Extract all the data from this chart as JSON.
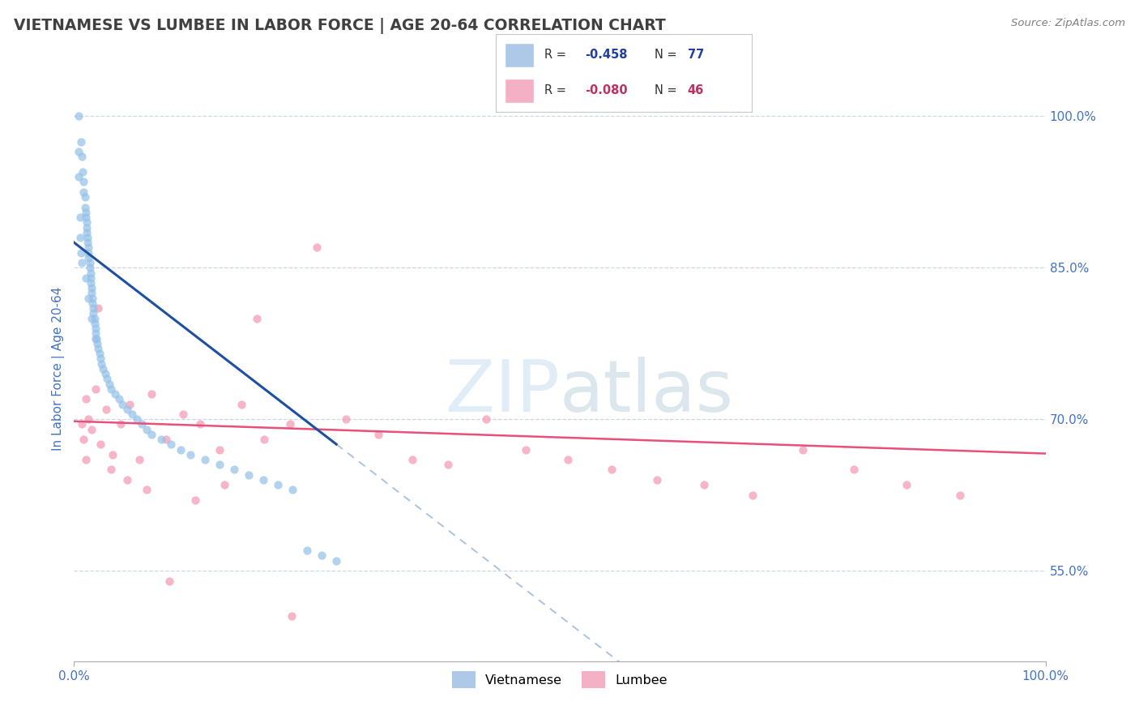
{
  "title": "VIETNAMESE VS LUMBEE IN LABOR FORCE | AGE 20-64 CORRELATION CHART",
  "source": "Source: ZipAtlas.com",
  "ylabel": "In Labor Force | Age 20-64",
  "xlim": [
    0.0,
    1.0
  ],
  "ylim": [
    0.46,
    1.04
  ],
  "ytick_labels_right": [
    "100.0%",
    "85.0%",
    "70.0%",
    "55.0%"
  ],
  "ytick_values_right": [
    1.0,
    0.85,
    0.7,
    0.55
  ],
  "watermark_zip": "ZIP",
  "watermark_atlas": "atlas",
  "vietnamese_color": "#92c0e8",
  "lumbee_color": "#f498b0",
  "vietnamese_alpha": 0.7,
  "lumbee_alpha": 0.7,
  "scatter_size": 55,
  "trend_viet_color": "#1e4fa0",
  "trend_lumbee_color": "#e8507a",
  "dashed_line_color": "#aac4e0",
  "grid_color": "#c8d8e8",
  "background_color": "#ffffff",
  "title_color": "#404040",
  "title_fontsize": 13.5,
  "right_tick_color": "#4472c4",
  "viet_trend_x0": 0.0,
  "viet_trend_y0": 0.875,
  "viet_trend_x1": 0.27,
  "viet_trend_y1": 0.675,
  "viet_trend_slope": -0.74,
  "viet_trend_intercept": 0.875,
  "lumb_trend_slope": -0.032,
  "lumb_trend_intercept": 0.698,
  "vietnamese_x": [
    0.005,
    0.007,
    0.008,
    0.009,
    0.01,
    0.01,
    0.011,
    0.011,
    0.012,
    0.012,
    0.013,
    0.013,
    0.013,
    0.014,
    0.014,
    0.015,
    0.015,
    0.015,
    0.016,
    0.016,
    0.017,
    0.017,
    0.017,
    0.018,
    0.018,
    0.019,
    0.019,
    0.02,
    0.02,
    0.021,
    0.021,
    0.022,
    0.022,
    0.023,
    0.024,
    0.025,
    0.026,
    0.027,
    0.028,
    0.03,
    0.032,
    0.034,
    0.036,
    0.038,
    0.042,
    0.046,
    0.05,
    0.055,
    0.06,
    0.065,
    0.07,
    0.075,
    0.08,
    0.09,
    0.1,
    0.11,
    0.12,
    0.135,
    0.15,
    0.165,
    0.18,
    0.195,
    0.21,
    0.225,
    0.24,
    0.255,
    0.27,
    0.005,
    0.005,
    0.006,
    0.006,
    0.007,
    0.008,
    0.012,
    0.015,
    0.018,
    0.022
  ],
  "vietnamese_y": [
    1.0,
    0.975,
    0.96,
    0.945,
    0.935,
    0.925,
    0.92,
    0.91,
    0.905,
    0.9,
    0.895,
    0.89,
    0.885,
    0.88,
    0.875,
    0.87,
    0.865,
    0.86,
    0.855,
    0.85,
    0.845,
    0.84,
    0.835,
    0.83,
    0.825,
    0.82,
    0.815,
    0.81,
    0.805,
    0.8,
    0.795,
    0.79,
    0.785,
    0.78,
    0.775,
    0.77,
    0.765,
    0.76,
    0.755,
    0.75,
    0.745,
    0.74,
    0.735,
    0.73,
    0.725,
    0.72,
    0.715,
    0.71,
    0.705,
    0.7,
    0.695,
    0.69,
    0.685,
    0.68,
    0.675,
    0.67,
    0.665,
    0.66,
    0.655,
    0.65,
    0.645,
    0.64,
    0.635,
    0.63,
    0.57,
    0.565,
    0.56,
    0.965,
    0.94,
    0.9,
    0.88,
    0.865,
    0.855,
    0.84,
    0.82,
    0.8,
    0.78
  ],
  "lumbee_x": [
    0.008,
    0.01,
    0.012,
    0.015,
    0.018,
    0.022,
    0.027,
    0.033,
    0.04,
    0.048,
    0.057,
    0.067,
    0.08,
    0.095,
    0.112,
    0.13,
    0.15,
    0.172,
    0.196,
    0.222,
    0.25,
    0.28,
    0.313,
    0.348,
    0.385,
    0.424,
    0.465,
    0.508,
    0.553,
    0.6,
    0.648,
    0.698,
    0.75,
    0.803,
    0.857,
    0.912,
    0.012,
    0.025,
    0.038,
    0.055,
    0.075,
    0.098,
    0.125,
    0.155,
    0.188,
    0.224
  ],
  "lumbee_y": [
    0.695,
    0.68,
    0.72,
    0.7,
    0.69,
    0.73,
    0.675,
    0.71,
    0.665,
    0.695,
    0.715,
    0.66,
    0.725,
    0.68,
    0.705,
    0.695,
    0.67,
    0.715,
    0.68,
    0.695,
    0.87,
    0.7,
    0.685,
    0.66,
    0.655,
    0.7,
    0.67,
    0.66,
    0.65,
    0.64,
    0.635,
    0.625,
    0.67,
    0.65,
    0.635,
    0.625,
    0.66,
    0.81,
    0.65,
    0.64,
    0.63,
    0.54,
    0.62,
    0.635,
    0.8,
    0.505
  ]
}
